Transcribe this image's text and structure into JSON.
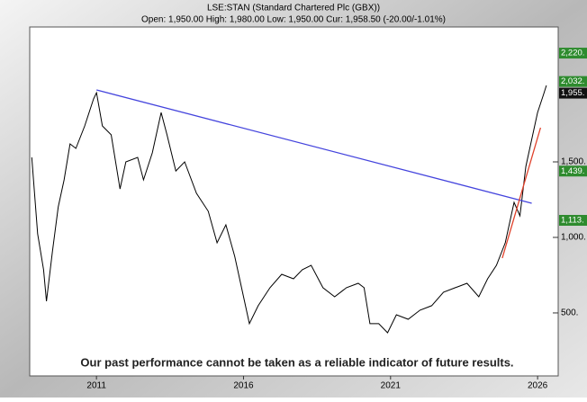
{
  "chart_data": {
    "type": "line",
    "title": "LSE:STAN (Standard Chartered Plc (GBX))",
    "subtitle": "Open: 1,950.00 High: 1,980.00 Low: 1,950.00 Cur: 1,958.50 (-20.00/-1.01%)",
    "annotation": "Our past performance cannot be taken as a reliable indicator of future results.",
    "xlim": [
      2008.73,
      2026.7
    ],
    "xticks": [
      2011,
      2016,
      2021,
      2026
    ],
    "ylim": [
      83,
      2393
    ],
    "yticks": [
      {
        "value": 500,
        "label": "500."
      },
      {
        "value": 1000,
        "label": "1,000."
      },
      {
        "value": 1500,
        "label": "1,500."
      }
    ],
    "series": [
      {
        "color": "#000000",
        "x": [
          2008.8,
          2009.0,
          2009.2,
          2009.3,
          2009.5,
          2009.7,
          2009.9,
          2010.1,
          2010.3,
          2010.6,
          2010.9,
          2011.0,
          2011.2,
          2011.5,
          2011.8,
          2012.0,
          2012.4,
          2012.6,
          2012.9,
          2013.2,
          2013.4,
          2013.7,
          2014.0,
          2014.4,
          2014.8,
          2015.1,
          2015.4,
          2015.7,
          2016.0,
          2016.2,
          2016.5,
          2016.9,
          2017.3,
          2017.7,
          2018.0,
          2018.3,
          2018.7,
          2019.1,
          2019.5,
          2019.9,
          2020.1,
          2020.3,
          2020.6,
          2020.9,
          2021.2,
          2021.6,
          2022.0,
          2022.4,
          2022.8,
          2023.2,
          2023.6,
          2024.0,
          2024.3,
          2024.6,
          2024.9,
          2025.2,
          2025.4,
          2025.6,
          2025.8,
          2026.0,
          2026.2,
          2026.3
        ],
        "values": [
          1530,
          1024,
          786,
          577,
          905,
          1202,
          1381,
          1619,
          1589,
          1738,
          1917,
          1958,
          1738,
          1679,
          1321,
          1500,
          1530,
          1381,
          1560,
          1827,
          1679,
          1440,
          1500,
          1292,
          1173,
          964,
          1083,
          875,
          607,
          429,
          548,
          667,
          756,
          726,
          786,
          815,
          667,
          607,
          667,
          696,
          667,
          429,
          429,
          369,
          488,
          458,
          518,
          548,
          637,
          667,
          696,
          607,
          726,
          815,
          964,
          1232,
          1143,
          1470,
          1649,
          1827,
          1946,
          2006
        ]
      }
    ],
    "trendlines": [
      {
        "color": "#4444dd",
        "x": [
          2011.0,
          2025.8
        ],
        "values": [
          1976,
          1226
        ]
      },
      {
        "color": "#e0402a",
        "x": [
          2024.8,
          2026.1
        ],
        "values": [
          863,
          1726
        ]
      }
    ],
    "levels": [
      {
        "value": 2220,
        "label": "2,220.",
        "color": "#2e8b2e"
      },
      {
        "value": 2032,
        "label": "2,032.",
        "color": "#2e8b2e"
      },
      {
        "value": 1955,
        "label": "1,955.",
        "color": "#111111"
      },
      {
        "value": 1439,
        "label": "1,439.",
        "color": "#2e8b2e"
      },
      {
        "value": 1113,
        "label": "1,113.",
        "color": "#2e8b2e"
      }
    ]
  }
}
